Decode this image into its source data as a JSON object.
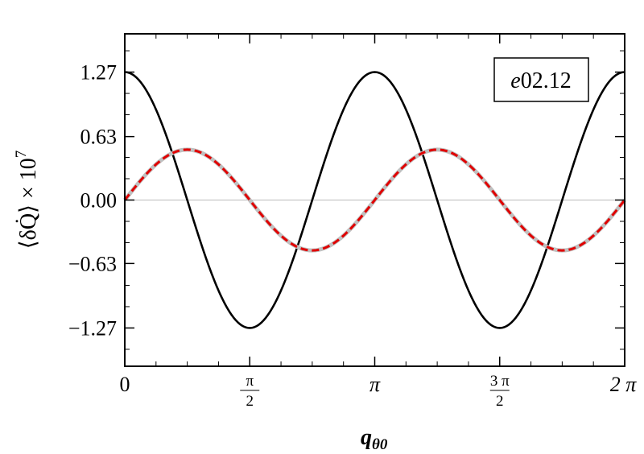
{
  "chart_data": {
    "type": "line",
    "xlabel": "q",
    "xlabel_sub": "θ0",
    "ylabel": "⟨δQ̇⟩ × 10",
    "ylabel_exp": "7",
    "annotation": "e02.12",
    "xlim": [
      0,
      6.2832
    ],
    "ylim": [
      -1.65,
      1.65
    ],
    "yticks": [
      {
        "value": 1.27,
        "label": "1.27"
      },
      {
        "value": 0.63,
        "label": "0.63"
      },
      {
        "value": 0.0,
        "label": "0.00"
      },
      {
        "value": -0.63,
        "label": "−0.63"
      },
      {
        "value": -1.27,
        "label": "−1.27"
      }
    ],
    "xticks": [
      {
        "value": 0,
        "label": "0",
        "kind": "plain"
      },
      {
        "value": 1.5708,
        "num": "π",
        "den": "2",
        "kind": "frac"
      },
      {
        "value": 3.1416,
        "label": "π",
        "kind": "plain"
      },
      {
        "value": 4.7124,
        "num": "3 π",
        "den": "2",
        "kind": "frac"
      },
      {
        "value": 6.2832,
        "label": "2 π",
        "kind": "plain"
      }
    ],
    "grid": false,
    "zero_line": true,
    "series": [
      {
        "color": "#000000",
        "style": "solid",
        "amplitude": 1.27,
        "form": "cos(2x)"
      },
      {
        "color": "#c0c0c0",
        "style": "solid",
        "amplitude": 0.5,
        "form": "sin(2x)"
      },
      {
        "color": "#e00000",
        "style": "dashed",
        "amplitude": 0.5,
        "form": "sin(2x)"
      }
    ]
  }
}
